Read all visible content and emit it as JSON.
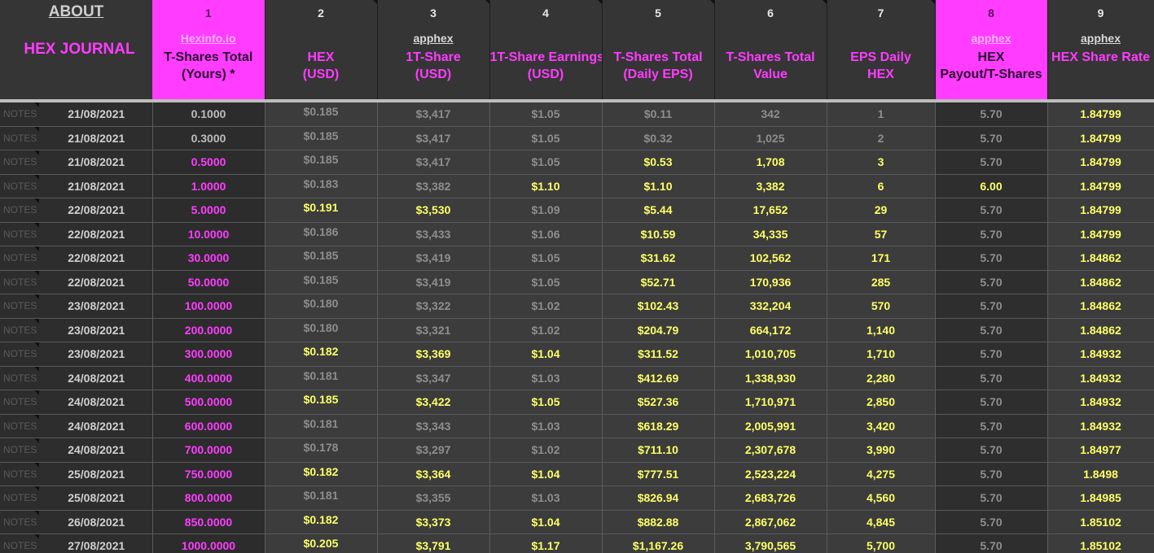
{
  "sheet": {
    "about_label": "ABOUT",
    "journal_label": "HEX JOURNAL",
    "columns": [
      {
        "num": "1",
        "link": "Hexinfo.io",
        "label1": "T-Shares Total",
        "label2": "(Yours) *"
      },
      {
        "num": "2",
        "link": "",
        "label1": "HEX",
        "label2": "(USD)"
      },
      {
        "num": "3",
        "link": "apphex",
        "label1": "1T-Share",
        "label2": "(USD)"
      },
      {
        "num": "4",
        "link": "",
        "label1": "1T-Share Earnings",
        "label2": "(USD)"
      },
      {
        "num": "5",
        "link": "",
        "label1": "T-Shares Total",
        "label2": "(Daily EPS)"
      },
      {
        "num": "6",
        "link": "",
        "label1": "T-Shares Total",
        "label2": "Value"
      },
      {
        "num": "7",
        "link": "",
        "label1": "EPS Daily",
        "label2": "HEX"
      },
      {
        "num": "8",
        "link": "apphex",
        "label1": "HEX",
        "label2": "Payout/T-Shares"
      },
      {
        "num": "9",
        "link": "apphex",
        "label1": "HEX Share Rate",
        "label2": ""
      }
    ],
    "notes_label": "NOTES",
    "rows": [
      {
        "date": "21/08/2021",
        "shares": "0.1000",
        "hex": "$0.185",
        "share": "$3,417",
        "earn": "$1.05",
        "eps": "$0.11",
        "value": "342",
        "daily": "1",
        "payout": "5.70",
        "rate": "1.84799"
      },
      {
        "date": "21/08/2021",
        "shares": "0.3000",
        "hex": "$0.185",
        "share": "$3,417",
        "earn": "$1.05",
        "eps": "$0.32",
        "value": "1,025",
        "daily": "2",
        "payout": "5.70",
        "rate": "1.84799"
      },
      {
        "date": "21/08/2021",
        "shares": "0.5000",
        "hex": "$0.185",
        "share": "$3,417",
        "earn": "$1.05",
        "eps": "$0.53",
        "value": "1,708",
        "daily": "3",
        "payout": "5.70",
        "rate": "1.84799"
      },
      {
        "date": "21/08/2021",
        "shares": "1.0000",
        "hex": "$0.183",
        "share": "$3,382",
        "earn": "$1.10",
        "eps": "$1.10",
        "value": "3,382",
        "daily": "6",
        "payout": "6.00",
        "rate": "1.84799"
      },
      {
        "date": "22/08/2021",
        "shares": "5.0000",
        "hex": "$0.191",
        "share": "$3,530",
        "earn": "$1.09",
        "eps": "$5.44",
        "value": "17,652",
        "daily": "29",
        "payout": "5.70",
        "rate": "1.84799"
      },
      {
        "date": "22/08/2021",
        "shares": "10.0000",
        "hex": "$0.186",
        "share": "$3,433",
        "earn": "$1.06",
        "eps": "$10.59",
        "value": "34,335",
        "daily": "57",
        "payout": "5.70",
        "rate": "1.84799"
      },
      {
        "date": "22/08/2021",
        "shares": "30.0000",
        "hex": "$0.185",
        "share": "$3,419",
        "earn": "$1.05",
        "eps": "$31.62",
        "value": "102,562",
        "daily": "171",
        "payout": "5.70",
        "rate": "1.84862"
      },
      {
        "date": "22/08/2021",
        "shares": "50.0000",
        "hex": "$0.185",
        "share": "$3,419",
        "earn": "$1.05",
        "eps": "$52.71",
        "value": "170,936",
        "daily": "285",
        "payout": "5.70",
        "rate": "1.84862"
      },
      {
        "date": "23/08/2021",
        "shares": "100.0000",
        "hex": "$0.180",
        "share": "$3,322",
        "earn": "$1.02",
        "eps": "$102.43",
        "value": "332,204",
        "daily": "570",
        "payout": "5.70",
        "rate": "1.84862"
      },
      {
        "date": "23/08/2021",
        "shares": "200.0000",
        "hex": "$0.180",
        "share": "$3,321",
        "earn": "$1.02",
        "eps": "$204.79",
        "value": "664,172",
        "daily": "1,140",
        "payout": "5.70",
        "rate": "1.84862"
      },
      {
        "date": "23/08/2021",
        "shares": "300.0000",
        "hex": "$0.182",
        "share": "$3,369",
        "earn": "$1.04",
        "eps": "$311.52",
        "value": "1,010,705",
        "daily": "1,710",
        "payout": "5.70",
        "rate": "1.84932"
      },
      {
        "date": "24/08/2021",
        "shares": "400.0000",
        "hex": "$0.181",
        "share": "$3,347",
        "earn": "$1.03",
        "eps": "$412.69",
        "value": "1,338,930",
        "daily": "2,280",
        "payout": "5.70",
        "rate": "1.84932"
      },
      {
        "date": "24/08/2021",
        "shares": "500.0000",
        "hex": "$0.185",
        "share": "$3,422",
        "earn": "$1.05",
        "eps": "$527.36",
        "value": "1,710,971",
        "daily": "2,850",
        "payout": "5.70",
        "rate": "1.84932"
      },
      {
        "date": "24/08/2021",
        "shares": "600.0000",
        "hex": "$0.181",
        "share": "$3,343",
        "earn": "$1.03",
        "eps": "$618.29",
        "value": "2,005,991",
        "daily": "3,420",
        "payout": "5.70",
        "rate": "1.84932"
      },
      {
        "date": "24/08/2021",
        "shares": "700.0000",
        "hex": "$0.178",
        "share": "$3,297",
        "earn": "$1.02",
        "eps": "$711.10",
        "value": "2,307,678",
        "daily": "3,990",
        "payout": "5.70",
        "rate": "1.84977"
      },
      {
        "date": "25/08/2021",
        "shares": "750.0000",
        "hex": "$0.182",
        "share": "$3,364",
        "earn": "$1.04",
        "eps": "$777.51",
        "value": "2,523,224",
        "daily": "4,275",
        "payout": "5.70",
        "rate": "1.8498"
      },
      {
        "date": "25/08/2021",
        "shares": "800.0000",
        "hex": "$0.181",
        "share": "$3,355",
        "earn": "$1.03",
        "eps": "$826.94",
        "value": "2,683,726",
        "daily": "4,560",
        "payout": "5.70",
        "rate": "1.84985"
      },
      {
        "date": "26/08/2021",
        "shares": "850.0000",
        "hex": "$0.182",
        "share": "$3,373",
        "earn": "$1.04",
        "eps": "$882.88",
        "value": "2,867,062",
        "daily": "4,845",
        "payout": "5.70",
        "rate": "1.85102"
      },
      {
        "date": "27/08/2021",
        "shares": "1000.0000",
        "hex": "$0.205",
        "share": "$3,791",
        "earn": "$1.17",
        "eps": "$1,167.26",
        "value": "3,790,565",
        "daily": "5,700",
        "payout": "5.70",
        "rate": "1.85102"
      }
    ]
  },
  "colors": {
    "accent_pink": "#ff3cff",
    "highlight_yellow": "#ffff66",
    "background": "#3a3a3a"
  }
}
